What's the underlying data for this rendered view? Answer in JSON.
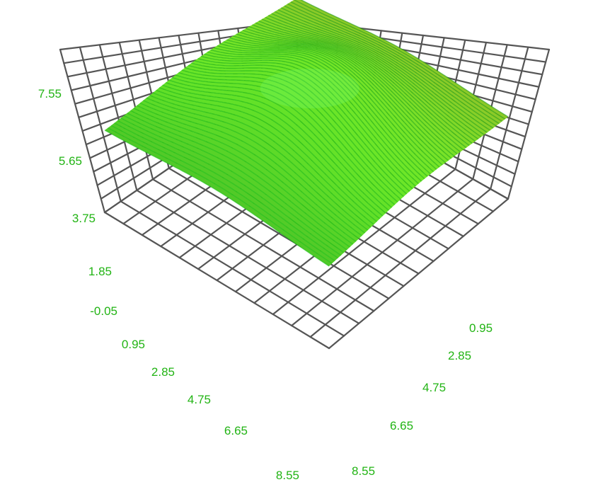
{
  "chart_data": {
    "type": "surface3d",
    "title": "",
    "xlabel": "",
    "ylabel": "",
    "zlabel": "",
    "x_ticks": [
      "0.95",
      "2.85",
      "4.75",
      "6.65",
      "8.55"
    ],
    "y_ticks": [
      "0.95",
      "2.85",
      "4.75",
      "6.65",
      "8.55"
    ],
    "z_ticks": [
      "-0.05",
      "1.85",
      "3.75",
      "5.65",
      "7.55"
    ],
    "x_range": [
      0,
      9.5
    ],
    "y_range": [
      0,
      9.5
    ],
    "z_range": [
      -0.05,
      7.55
    ],
    "surface": {
      "function": "gaussian",
      "peak": 6.5,
      "base": 3.75,
      "center_x": 4.75,
      "center_y": 4.75
    },
    "grid": true,
    "colors": {
      "surface": "#3fd92c",
      "grid": "#555555",
      "tick_labels": "#22b414"
    }
  }
}
